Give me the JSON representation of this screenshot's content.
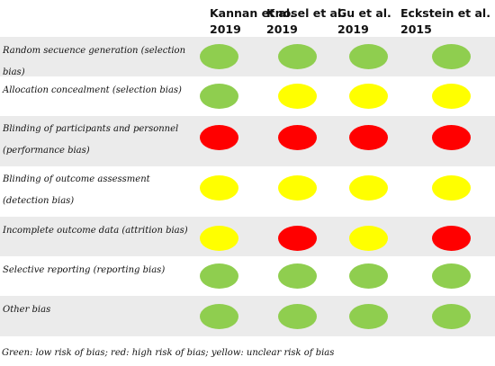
{
  "studies": [
    {
      "name": "Kannan et al.",
      "year": "2019"
    },
    {
      "name": "Knosel et al.",
      "year": "2019"
    },
    {
      "name": "Gu et al.",
      "year": "2019"
    },
    {
      "name": "Eckstein  et  al.",
      "year": "2015"
    }
  ],
  "domains": [
    {
      "label": "Random secuence generation (selection bias)",
      "ratings": [
        "green",
        "green",
        "green",
        "green"
      ]
    },
    {
      "label": "Allocation concealment (selection bias)",
      "ratings": [
        "green",
        "yellow",
        "yellow",
        "yellow"
      ]
    },
    {
      "label": "Blinding of participants and personnel (performance bias)",
      "ratings": [
        "red",
        "red",
        "red",
        "red"
      ]
    },
    {
      "label": "Blinding of outcome assessment (detection bias)",
      "ratings": [
        "yellow",
        "yellow",
        "yellow",
        "yellow"
      ]
    },
    {
      "label": "Incomplete outcome data (attrition bias)",
      "ratings": [
        "yellow",
        "red",
        "yellow",
        "red"
      ]
    },
    {
      "label": "Selective reporting (reporting bias)",
      "ratings": [
        "green",
        "green",
        "green",
        "green"
      ]
    },
    {
      "label": "Other bias",
      "ratings": [
        "green",
        "green",
        "green",
        "green"
      ]
    }
  ],
  "colors": {
    "green": "#8fce4f",
    "yellow": "#ffff00",
    "red": "#ff0000"
  },
  "footnote": "Green: low risk of bias; red: high risk of bias; yellow: unclear risk of bias"
}
